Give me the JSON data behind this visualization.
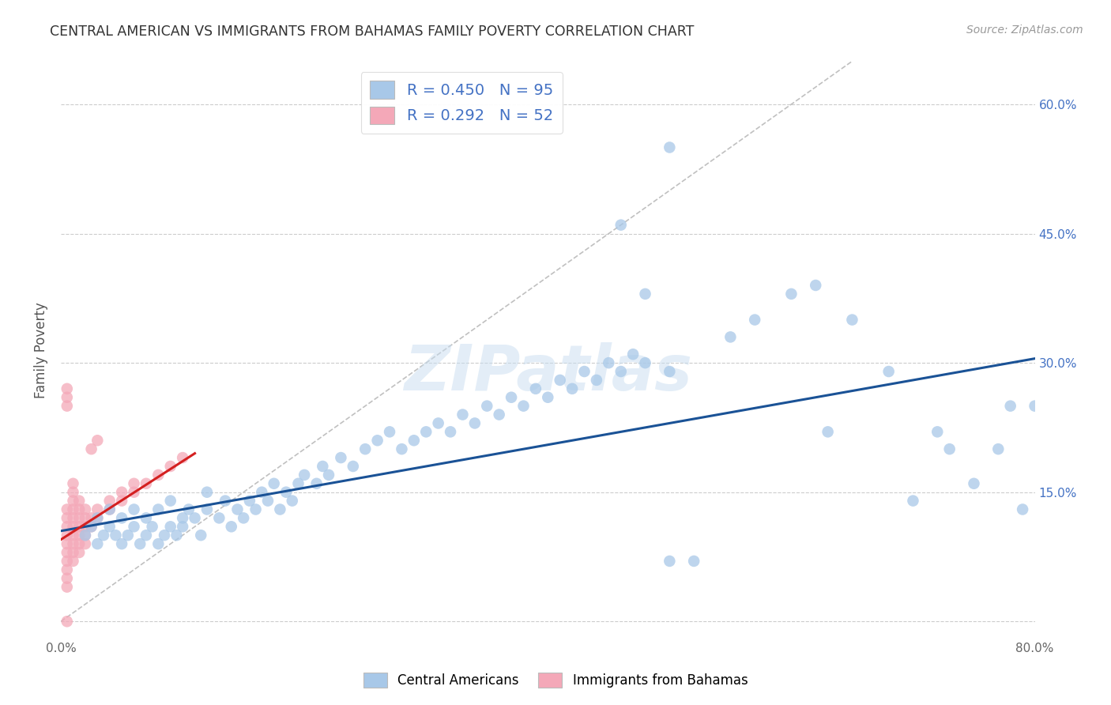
{
  "title": "CENTRAL AMERICAN VS IMMIGRANTS FROM BAHAMAS FAMILY POVERTY CORRELATION CHART",
  "source": "Source: ZipAtlas.com",
  "ylabel": "Family Poverty",
  "xlim": [
    0.0,
    0.8
  ],
  "ylim": [
    -0.02,
    0.65
  ],
  "x_ticks": [
    0.0,
    0.1,
    0.2,
    0.3,
    0.4,
    0.5,
    0.6,
    0.7,
    0.8
  ],
  "x_tick_labels": [
    "0.0%",
    "",
    "",
    "",
    "",
    "",
    "",
    "",
    "80.0%"
  ],
  "y_ticks": [
    0.0,
    0.15,
    0.3,
    0.45,
    0.6
  ],
  "y_tick_labels": [
    "",
    "15.0%",
    "30.0%",
    "45.0%",
    "60.0%"
  ],
  "grid_color": "#cccccc",
  "background_color": "#ffffff",
  "blue_scatter_color": "#a8c8e8",
  "pink_scatter_color": "#f4a8b8",
  "trend_blue_color": "#1a5296",
  "trend_pink_color": "#d42020",
  "diag_line_color": "#c0c0c0",
  "R_blue": 0.45,
  "N_blue": 95,
  "R_pink": 0.292,
  "N_pink": 52,
  "legend_label_blue": "Central Americans",
  "legend_label_pink": "Immigrants from Bahamas",
  "watermark": "ZIPatlas",
  "blue_trend_x0": 0.0,
  "blue_trend_y0": 0.105,
  "blue_trend_x1": 0.8,
  "blue_trend_y1": 0.305,
  "pink_trend_x0": 0.0,
  "pink_trend_y0": 0.095,
  "pink_trend_x1": 0.11,
  "pink_trend_y1": 0.195,
  "blue_x": [
    0.02,
    0.025,
    0.03,
    0.03,
    0.035,
    0.04,
    0.04,
    0.045,
    0.05,
    0.05,
    0.055,
    0.06,
    0.06,
    0.065,
    0.07,
    0.07,
    0.075,
    0.08,
    0.08,
    0.085,
    0.09,
    0.09,
    0.095,
    0.1,
    0.1,
    0.105,
    0.11,
    0.115,
    0.12,
    0.12,
    0.13,
    0.135,
    0.14,
    0.145,
    0.15,
    0.155,
    0.16,
    0.165,
    0.17,
    0.175,
    0.18,
    0.185,
    0.19,
    0.195,
    0.2,
    0.21,
    0.215,
    0.22,
    0.23,
    0.24,
    0.25,
    0.26,
    0.27,
    0.28,
    0.29,
    0.3,
    0.31,
    0.32,
    0.33,
    0.34,
    0.35,
    0.36,
    0.37,
    0.38,
    0.39,
    0.4,
    0.41,
    0.42,
    0.43,
    0.44,
    0.45,
    0.46,
    0.47,
    0.48,
    0.5,
    0.5,
    0.52,
    0.55,
    0.57,
    0.6,
    0.62,
    0.63,
    0.65,
    0.68,
    0.7,
    0.72,
    0.73,
    0.75,
    0.77,
    0.78,
    0.79,
    0.8,
    0.46,
    0.48,
    0.5
  ],
  "blue_y": [
    0.1,
    0.11,
    0.09,
    0.12,
    0.1,
    0.11,
    0.13,
    0.1,
    0.09,
    0.12,
    0.1,
    0.11,
    0.13,
    0.09,
    0.1,
    0.12,
    0.11,
    0.09,
    0.13,
    0.1,
    0.11,
    0.14,
    0.1,
    0.12,
    0.11,
    0.13,
    0.12,
    0.1,
    0.13,
    0.15,
    0.12,
    0.14,
    0.11,
    0.13,
    0.12,
    0.14,
    0.13,
    0.15,
    0.14,
    0.16,
    0.13,
    0.15,
    0.14,
    0.16,
    0.17,
    0.16,
    0.18,
    0.17,
    0.19,
    0.18,
    0.2,
    0.21,
    0.22,
    0.2,
    0.21,
    0.22,
    0.23,
    0.22,
    0.24,
    0.23,
    0.25,
    0.24,
    0.26,
    0.25,
    0.27,
    0.26,
    0.28,
    0.27,
    0.29,
    0.28,
    0.3,
    0.29,
    0.31,
    0.3,
    0.07,
    0.29,
    0.07,
    0.33,
    0.35,
    0.38,
    0.39,
    0.22,
    0.35,
    0.29,
    0.14,
    0.22,
    0.2,
    0.16,
    0.2,
    0.25,
    0.13,
    0.25,
    0.46,
    0.38,
    0.55
  ],
  "pink_x": [
    0.005,
    0.005,
    0.005,
    0.005,
    0.005,
    0.005,
    0.005,
    0.005,
    0.005,
    0.005,
    0.01,
    0.01,
    0.01,
    0.01,
    0.01,
    0.01,
    0.01,
    0.01,
    0.01,
    0.01,
    0.015,
    0.015,
    0.015,
    0.015,
    0.015,
    0.015,
    0.015,
    0.02,
    0.02,
    0.02,
    0.02,
    0.02,
    0.025,
    0.025,
    0.025,
    0.03,
    0.03,
    0.03,
    0.04,
    0.04,
    0.05,
    0.05,
    0.06,
    0.06,
    0.07,
    0.08,
    0.09,
    0.1,
    0.005,
    0.005,
    0.005,
    0.005
  ],
  "pink_y": [
    0.09,
    0.1,
    0.11,
    0.12,
    0.13,
    0.08,
    0.07,
    0.06,
    0.05,
    0.04,
    0.09,
    0.1,
    0.11,
    0.12,
    0.13,
    0.14,
    0.15,
    0.08,
    0.07,
    0.16,
    0.1,
    0.11,
    0.12,
    0.13,
    0.14,
    0.09,
    0.08,
    0.1,
    0.11,
    0.12,
    0.13,
    0.09,
    0.11,
    0.12,
    0.2,
    0.12,
    0.13,
    0.21,
    0.13,
    0.14,
    0.14,
    0.15,
    0.15,
    0.16,
    0.16,
    0.17,
    0.18,
    0.19,
    0.27,
    0.26,
    0.25,
    0.0
  ]
}
